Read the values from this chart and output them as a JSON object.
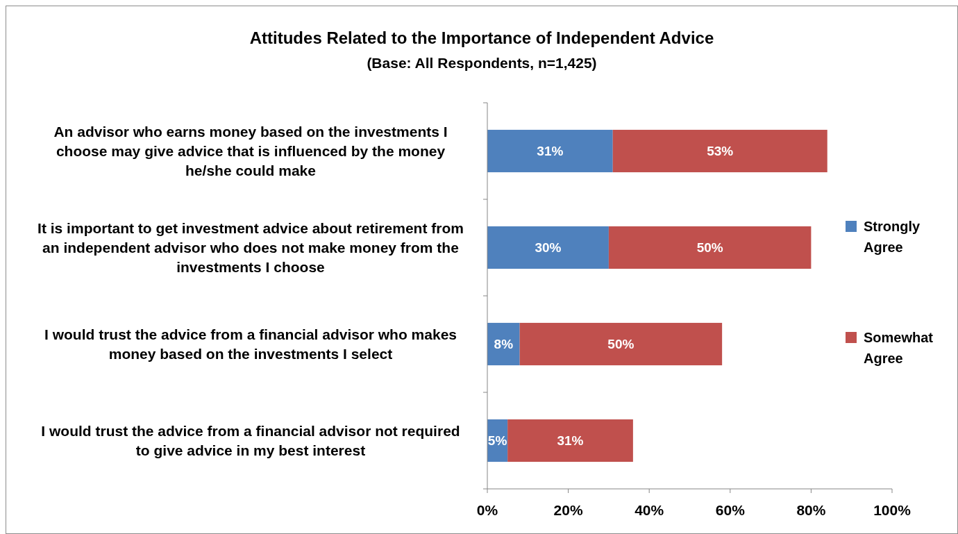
{
  "chart_data": {
    "type": "bar",
    "orientation": "horizontal",
    "stacked": true,
    "title": "Attitudes Related to the Importance of Independent Advice",
    "subtitle": "(Base: All Respondents, n=1,425)",
    "categories": [
      "An advisor who earns money based on the investments I choose may give advice that is influenced by the money he/she could make",
      "It is important to get investment advice about retirement from an independent advisor who does not make money from the investments I choose",
      "I would trust the advice from a financial advisor who makes money based on the investments I select",
      "I would trust the advice from a financial advisor not required to give advice in my best interest"
    ],
    "series": [
      {
        "name": "Strongly Agree",
        "color": "#4f81bd",
        "values": [
          31,
          30,
          8,
          5
        ],
        "value_labels": [
          "31%",
          "30%",
          "8%",
          "5%"
        ]
      },
      {
        "name": "Somewhat Agree",
        "color": "#c0504d",
        "values": [
          53,
          50,
          50,
          31
        ],
        "value_labels": [
          "53%",
          "50%",
          "50%",
          "31%"
        ]
      }
    ],
    "xlim": [
      0,
      100
    ],
    "xticks": [
      {
        "value": 0,
        "label": "0%"
      },
      {
        "value": 20,
        "label": "20%"
      },
      {
        "value": 40,
        "label": "40%"
      },
      {
        "value": 60,
        "label": "60%"
      },
      {
        "value": 80,
        "label": "80%"
      },
      {
        "value": 100,
        "label": "100%"
      }
    ],
    "legend": "right"
  }
}
